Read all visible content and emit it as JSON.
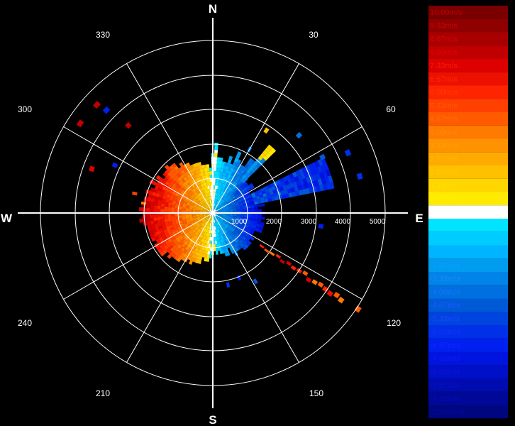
{
  "chart_data": {
    "type": "polar-heatmap",
    "compass": {
      "n": "N",
      "e": "E",
      "s": "S",
      "w": "W"
    },
    "bearings": [
      "30",
      "60",
      "120",
      "150",
      "210",
      "240",
      "300",
      "330"
    ],
    "range_labels": [
      "1000",
      "2000",
      "3000",
      "4000",
      "5000"
    ],
    "range_max": 5000,
    "legend": [
      {
        "label": "10.00m/s",
        "color": "#7a0000",
        "text_color": "#c00000"
      },
      {
        "label": "9.33m/s",
        "color": "#8f0000",
        "text_color": "#d40000"
      },
      {
        "label": "8.67m/s",
        "color": "#a80000",
        "text_color": "#e00000"
      },
      {
        "label": "8.00m/s",
        "color": "#c00000",
        "text_color": "#e80000"
      },
      {
        "label": "7.33m/s",
        "color": "#dc0000",
        "text_color": "#ff1a00"
      },
      {
        "label": "6.67m/s",
        "color": "#ec1000",
        "text_color": "#ff2a00"
      },
      {
        "label": "6.00m/s",
        "color": "#ff2400",
        "text_color": "#ff3c00"
      },
      {
        "label": "5.33m/s",
        "color": "#ff4000",
        "text_color": "#ff5a00"
      },
      {
        "label": "4.67m/s",
        "color": "#ff5a00",
        "text_color": "#ff7200"
      },
      {
        "label": "4.00m/s",
        "color": "#ff7a00",
        "text_color": "#ff8c00"
      },
      {
        "label": "3.33m/s",
        "color": "#ff9200",
        "text_color": "#ffa200"
      },
      {
        "label": "2.67m/s",
        "color": "#ffaa00",
        "text_color": "#ffb800"
      },
      {
        "label": "2.00m/s",
        "color": "#ffc000",
        "text_color": "#ffcc00"
      },
      {
        "label": "1.33m/s",
        "color": "#ffd600",
        "text_color": "#ffdd00"
      },
      {
        "label": "0.67m/s",
        "color": "#ffea00",
        "text_color": "#ffee00"
      },
      {
        "label": "0.00m/s",
        "color": "#ffffff",
        "text_color": "#ffffff"
      },
      {
        "label": "-0.67m/s",
        "color": "#00e4ff",
        "text_color": "#00e4ff"
      },
      {
        "label": "-1.33m/s",
        "color": "#00ccff",
        "text_color": "#00ccff"
      },
      {
        "label": "-2.00m/s",
        "color": "#00b4ff",
        "text_color": "#00b4ff"
      },
      {
        "label": "-2.67m/s",
        "color": "#009cf0",
        "text_color": "#109cff"
      },
      {
        "label": "-3.33m/s",
        "color": "#0084e8",
        "text_color": "#1a88ff"
      },
      {
        "label": "-4.00m/s",
        "color": "#0070e0",
        "text_color": "#1a72ff"
      },
      {
        "label": "-4.67m/s",
        "color": "#005ad8",
        "text_color": "#1a5aff"
      },
      {
        "label": "-5.33m/s",
        "color": "#0044e0",
        "text_color": "#1a46ff"
      },
      {
        "label": "-6.00m/s",
        "color": "#0030e8",
        "text_color": "#1a32ff"
      },
      {
        "label": "-6.67m/s",
        "color": "#0020f0",
        "text_color": "#1424ff"
      },
      {
        "label": "-7.33m/s",
        "color": "#0014e0",
        "text_color": "#101aee"
      },
      {
        "label": "-8.00m/s",
        "color": "#0010c8",
        "text_color": "#0c14d8"
      },
      {
        "label": "-8.67m/s",
        "color": "#000cb0",
        "text_color": "#0a10c4"
      },
      {
        "label": "-9.33m/s",
        "color": "#000898",
        "text_color": "#080cb0"
      },
      {
        "label": "-10.00m/s",
        "color": "#000680",
        "text_color": "#06089a"
      }
    ]
  }
}
